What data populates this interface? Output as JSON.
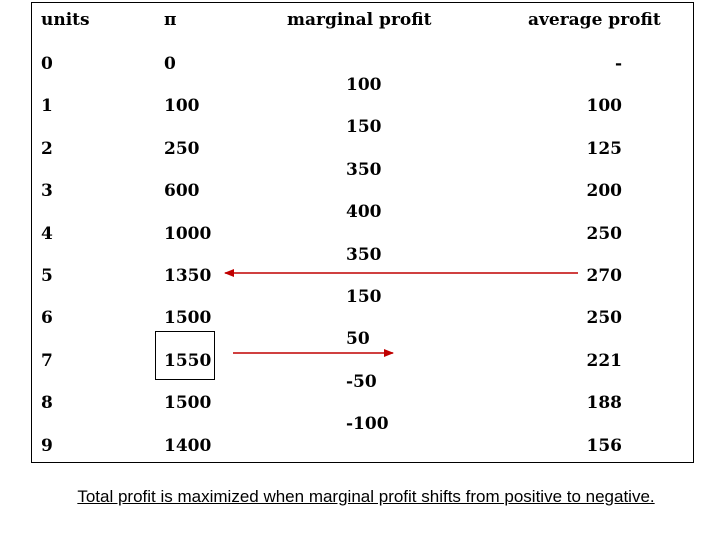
{
  "table": {
    "headers": {
      "units": "units",
      "pi": "π",
      "marginal": "marginal profit",
      "average": "average profit"
    },
    "rows": [
      {
        "units": "0",
        "pi": "0",
        "average": "-"
      },
      {
        "units": "1",
        "pi": "100",
        "average": "100"
      },
      {
        "units": "2",
        "pi": "250",
        "average": "125"
      },
      {
        "units": "3",
        "pi": "600",
        "average": "200"
      },
      {
        "units": "4",
        "pi": "1000",
        "average": "250"
      },
      {
        "units": "5",
        "pi": "1350",
        "average": "270"
      },
      {
        "units": "6",
        "pi": "1500",
        "average": "250"
      },
      {
        "units": "7",
        "pi": "1550",
        "average": "221"
      },
      {
        "units": "8",
        "pi": "1500",
        "average": "188"
      },
      {
        "units": "9",
        "pi": "1400",
        "average": "156"
      }
    ],
    "marginal": [
      "100",
      "150",
      "350",
      "400",
      "350",
      "150",
      "50",
      "-50",
      "-100"
    ]
  },
  "caption": "Total profit is maximized when marginal profit shifts from positive to negative.",
  "colors": {
    "arrow": "#c00000"
  }
}
